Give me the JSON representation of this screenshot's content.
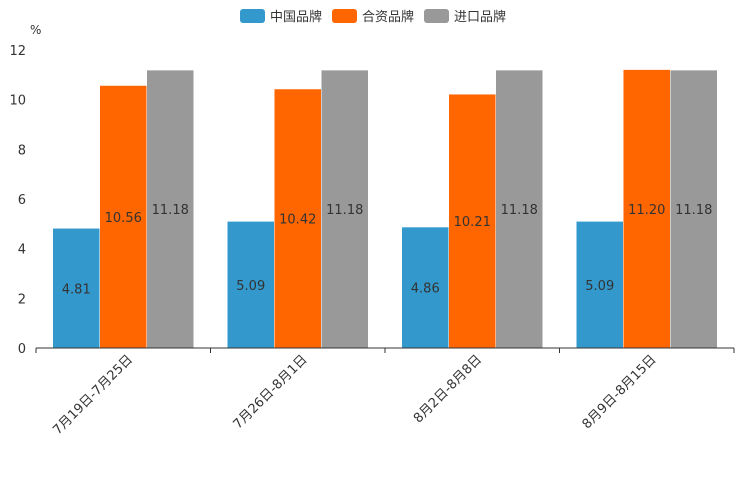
{
  "chart_data": {
    "type": "bar",
    "title": "",
    "xlabel": "",
    "ylabel": "%",
    "ylim": [
      0,
      12
    ],
    "yticks": [
      0,
      2,
      4,
      6,
      8,
      10,
      12
    ],
    "yticks_text": [
      "0",
      "2",
      "4",
      "6",
      "8",
      "10",
      "12"
    ],
    "grid": false,
    "legend_position": "top-center",
    "categories": [
      "7月19日-7月25日",
      "7月26日-8月1日",
      "8月2日-8月8日",
      "8月9日-8月15日"
    ],
    "series": [
      {
        "name": "中国品牌",
        "color": "#3399cc",
        "values": [
          4.81,
          5.09,
          4.86,
          5.09
        ],
        "labels": [
          "4.81",
          "5.09",
          "4.86",
          "5.09"
        ]
      },
      {
        "name": "合资品牌",
        "color": "#ff6600",
        "values": [
          10.56,
          10.42,
          10.21,
          11.2
        ],
        "labels": [
          "10.56",
          "10.42",
          "10.21",
          "11.20"
        ]
      },
      {
        "name": "进口品牌",
        "color": "#999999",
        "values": [
          11.18,
          11.18,
          11.18,
          11.18
        ],
        "labels": [
          "11.18",
          "11.18",
          "11.18",
          "11.18"
        ]
      }
    ]
  }
}
